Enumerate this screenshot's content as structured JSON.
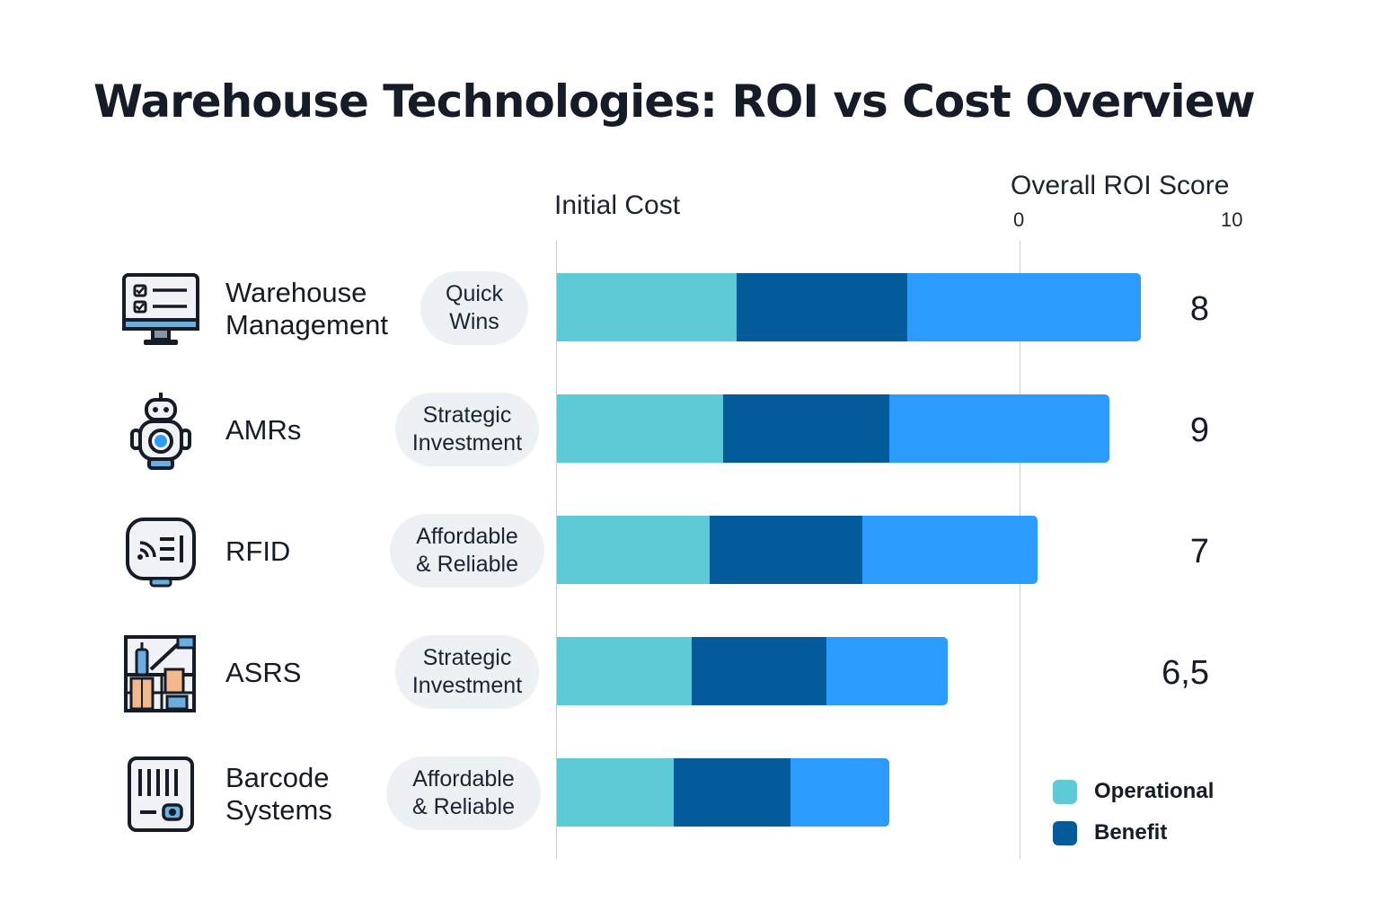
{
  "title": "Warehouse Technologies: ROI vs Cost Overview",
  "colors": {
    "operational": "#5ccbd6",
    "benefit": "#035b99",
    "third": "#2b9bfd",
    "axis": "#c9cdd3"
  },
  "chart_data": {
    "type": "bar",
    "orientation": "horizontal",
    "stacked": true,
    "title": "Warehouse Technologies: ROI vs Cost Overview",
    "xlabel": "Initial Cost",
    "roi_label": "Overall ROI Score",
    "roi_ticks": [
      "0",
      "10"
    ],
    "legend": [
      "Operational",
      "Benefit"
    ],
    "legend_position": "bottom-right",
    "categories": [
      "Warehouse Management",
      "AMRs",
      "RFID",
      "ASRS",
      "Barcode Systems"
    ],
    "tags": [
      "Quick Wins",
      "Strategic Investment",
      "Affordable & Reliable",
      "Strategic Investment",
      "Affordable & Reliable"
    ],
    "series": [
      {
        "name": "Operational",
        "values": [
          2.0,
          1.85,
          1.7,
          1.5,
          1.3
        ]
      },
      {
        "name": "Benefit",
        "values": [
          1.9,
          1.85,
          1.7,
          1.5,
          1.3
        ]
      },
      {
        "values": [
          2.6,
          2.45,
          1.95,
          1.35,
          1.1
        ]
      }
    ],
    "roi_scores": [
      "8",
      "9",
      "7",
      "6,5",
      ""
    ],
    "icons": [
      "monitor-checklist-icon",
      "robot-icon",
      "rfid-reader-icon",
      "storage-shelves-icon",
      "barcode-scanner-icon"
    ]
  }
}
